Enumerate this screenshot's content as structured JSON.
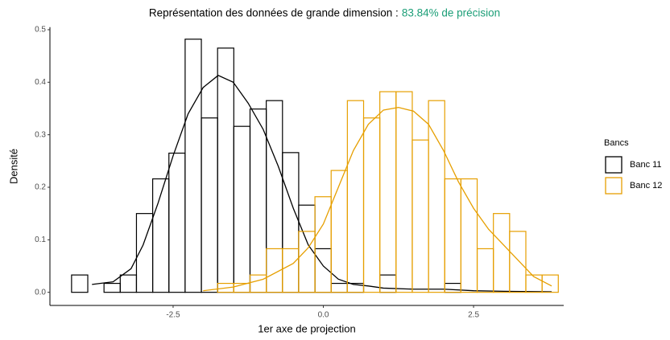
{
  "chart_data": {
    "type": "histogram",
    "title": "Représentation des données de grande dimension : ",
    "subtitle": "83.84% de précision",
    "subtitle_color": "#1b9e77",
    "x_label": "1er axe de projection",
    "y_label": "Densité",
    "legend_title": "Bancs",
    "legend_position": "right",
    "bins": [
      -4.19,
      -3.92,
      -3.65,
      -3.38,
      -3.11,
      -2.84,
      -2.57,
      -2.3,
      -2.03,
      -1.76,
      -1.49,
      -1.22,
      -0.95,
      -0.68,
      -0.41,
      -0.14,
      0.13,
      0.4,
      0.67,
      0.94,
      1.21,
      1.48,
      1.75,
      2.02,
      2.29,
      2.56,
      2.83,
      3.1,
      3.37,
      3.64,
      3.91
    ],
    "series": [
      {
        "name": "Banc 11",
        "color": "#000000",
        "values": [
          0.033,
          0,
          0.017,
          0.033,
          0.15,
          0.216,
          0.265,
          0.482,
          0.332,
          0.465,
          0.316,
          0.349,
          0.365,
          0.266,
          0.166,
          0.083,
          0.017,
          0.017,
          0,
          0.033,
          0,
          0,
          0,
          0.017,
          0,
          0,
          0,
          0,
          0,
          0
        ],
        "density_x": [
          -3.85,
          -3.5,
          -3.2,
          -3.0,
          -2.75,
          -2.5,
          -2.25,
          -2.0,
          -1.75,
          -1.5,
          -1.25,
          -1.0,
          -0.75,
          -0.5,
          -0.25,
          0,
          0.25,
          0.5,
          0.75,
          1.0,
          1.5,
          2.0,
          2.5,
          3.0,
          3.8
        ],
        "density": [
          0.015,
          0.02,
          0.045,
          0.09,
          0.17,
          0.26,
          0.34,
          0.39,
          0.413,
          0.4,
          0.36,
          0.31,
          0.24,
          0.16,
          0.09,
          0.05,
          0.025,
          0.015,
          0.012,
          0.008,
          0.006,
          0.006,
          0.003,
          0.002,
          0.001
        ]
      },
      {
        "name": "Banc 12",
        "color": "#e69f00",
        "values": [
          0,
          0,
          0,
          0,
          0,
          0,
          0,
          0,
          0,
          0.017,
          0.017,
          0.033,
          0.083,
          0.083,
          0.116,
          0.182,
          0.232,
          0.365,
          0.332,
          0.382,
          0.382,
          0.29,
          0.365,
          0.216,
          0.216,
          0.083,
          0.15,
          0.116,
          0.033,
          0.033
        ],
        "density_x": [
          -2.0,
          -1.5,
          -1.0,
          -0.5,
          -0.25,
          0,
          0.25,
          0.5,
          0.75,
          1.0,
          1.25,
          1.5,
          1.75,
          2.0,
          2.25,
          2.5,
          2.75,
          3.0,
          3.25,
          3.5,
          3.8
        ],
        "density": [
          0.003,
          0.01,
          0.025,
          0.055,
          0.085,
          0.13,
          0.2,
          0.27,
          0.32,
          0.347,
          0.352,
          0.345,
          0.32,
          0.27,
          0.21,
          0.16,
          0.12,
          0.09,
          0.06,
          0.03,
          0.012
        ]
      }
    ],
    "xlim": [
      -4.55,
      4.0
    ],
    "ylim": [
      -0.025,
      0.505
    ],
    "xticks": [
      -2.5,
      {
        "value": 0,
        "label": "0.0"
      },
      2.5
    ],
    "yticks": [
      {
        "value": 0,
        "label": "0.0"
      },
      0.1,
      0.2,
      0.3,
      0.4,
      0.5
    ]
  }
}
